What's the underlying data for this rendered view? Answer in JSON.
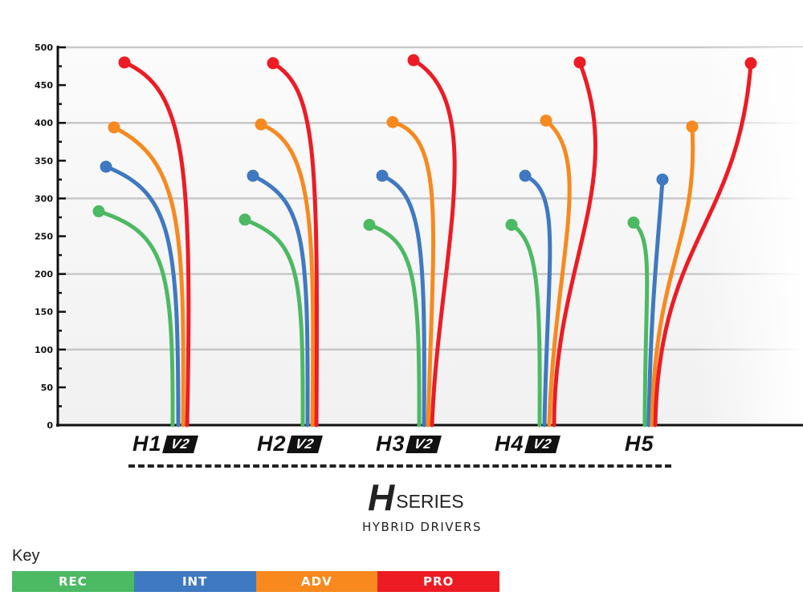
{
  "chart_data": {
    "type": "line",
    "title": "",
    "xlabel": "",
    "ylabel": "",
    "ylim": [
      0,
      500
    ],
    "yticks": [
      "0",
      "50",
      "100",
      "150",
      "200",
      "250",
      "300",
      "350",
      "400",
      "450",
      "500"
    ],
    "grid": true,
    "categories": [
      {
        "name": "H1",
        "badge": "V2"
      },
      {
        "name": "H2",
        "badge": "V2"
      },
      {
        "name": "H3",
        "badge": "V2"
      },
      {
        "name": "H4",
        "badge": "V2"
      },
      {
        "name": "H5",
        "badge": ""
      }
    ],
    "series": [
      {
        "name": "REC",
        "color": "#4cb963",
        "values": [
          283,
          272,
          265,
          265,
          268
        ]
      },
      {
        "name": "INT",
        "color": "#3f79c1",
        "values": [
          342,
          330,
          330,
          330,
          325
        ]
      },
      {
        "name": "ADV",
        "color": "#f7891f",
        "values": [
          394,
          398,
          401,
          403,
          395
        ]
      },
      {
        "name": "PRO",
        "color": "#ed1c24",
        "values": [
          480,
          479,
          483,
          480,
          479
        ]
      }
    ],
    "legend_placement": "bottom-left"
  },
  "brand": {
    "mark": "H",
    "series": "SERIES",
    "subtitle": "HYBRID DRIVERS"
  },
  "key": {
    "title": "Key",
    "items": [
      "REC",
      "INT",
      "ADV",
      "PRO"
    ]
  }
}
